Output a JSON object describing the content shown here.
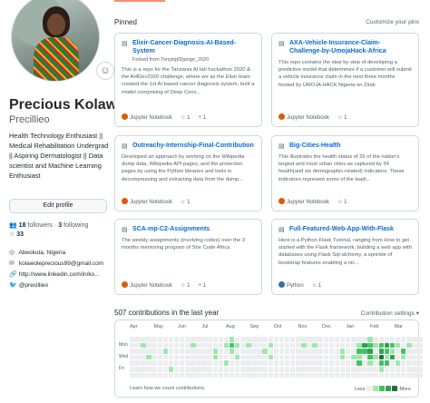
{
  "profile": {
    "name": "Precious Kolawole",
    "username": "Precillieo",
    "bio": "Health Technology Enthusiast || Medical Rehabilitation Undergrad || Aspiring Dermatologist || Data scientist and Machine Learning Enthusiast",
    "edit_label": "Edit profile",
    "followers": "18",
    "followers_label": "followers",
    "following": "3",
    "following_label": "following",
    "stars": "33",
    "location": "Abeokuta, Nigeria",
    "email": "kolawoleprecious99@gmail.com",
    "website": "http://www.linkedin.com/in/ko...",
    "twitter": "@precillieo"
  },
  "pinned": {
    "title": "Pinned",
    "customize_label": "Customize your pins",
    "repos": [
      {
        "name": "Elixir-Cancer-Diagnosis-AI-Based-System",
        "forked": "Forked from Tonytojt/Django_2020",
        "desc": "This is a repo for the Tanzania AI lab hackathon 2020 & the AI4Dev2020 challenge, where we as the Elixir team created the 1st AI based cancer diagnosis system, built a model comprising of Deep Conv...",
        "language": "Jupyter Notebook",
        "lang_color": "#DA5B0B",
        "stars": "1",
        "forks": "1"
      },
      {
        "name": "AXA-Vehicle-Insurance-Claim-Challenge-by-UmojaHack-Africa",
        "forked": "",
        "desc": "This repo contains the step by step of developing a predictive model that determines if a customer will submit a vehicle insurance claim in the next three months hosted by UMOJA HACK Nigeria on Zindi",
        "language": "Jupyter Notebook",
        "lang_color": "#DA5B0B",
        "stars": "1",
        "forks": ""
      },
      {
        "name": "Outreachy-Internship-Final-Contribution",
        "forked": "",
        "desc": "Developed an approach by working on the Wikipedia dump data, Wikipedia API pages, and the protection pages by using the Python libraries and tools in decompressing and extracting data from the dump...",
        "language": "Jupyter Notebook",
        "lang_color": "#DA5B0B",
        "stars": "1",
        "forks": ""
      },
      {
        "name": "Big-Cities-Health",
        "forked": "",
        "desc": "This illustrates the health status of 26 of the nation's largest and most urban cities as captured by 34 health(and six demographic-related) indicators. These indicators represent some of the leadi...",
        "language": "Jupyter Notebook",
        "lang_color": "#DA5B0B",
        "stars": "1",
        "forks": ""
      },
      {
        "name": "SCA-mp-C2-Assignments",
        "forked": "",
        "desc": "The weekly assignments (involving codes) over the 3 months mentoring program of She Code Africa",
        "language": "Jupyter Notebook",
        "lang_color": "#DA5B0B",
        "stars": "1",
        "forks": "1"
      },
      {
        "name": "Full-Featured-Web-App-With-Flask",
        "forked": "",
        "desc": "Here is a Python Flask Tutorial, ranging from How to get started with the Flask framework, building a web app with databases using Flask Sql-alchemy, a sprinkle of bootstrap features enabling a nic...",
        "language": "Python",
        "lang_color": "#3572A5",
        "stars": "1",
        "forks": ""
      }
    ]
  },
  "contributions": {
    "title": "507 contributions in the last year",
    "settings_label": "Contribution settings",
    "months": [
      "Apr",
      "May",
      "Jun",
      "Jul",
      "Aug",
      "Sep",
      "Oct",
      "Nov",
      "Dec",
      "Jan",
      "Feb",
      "Mar"
    ],
    "days": [
      "Mon",
      "Wed",
      "Fri"
    ],
    "learn_label": "Learn how we count contributions.",
    "legend_less": "Less",
    "legend_more": "More",
    "palette": [
      "#ebedf0",
      "#9be9a8",
      "#40c463",
      "#30a14e",
      "#216e39"
    ],
    "weeks": [
      [
        0,
        0,
        0,
        0,
        0,
        0,
        0
      ],
      [
        0,
        0,
        0,
        0,
        0,
        0,
        0
      ],
      [
        0,
        1,
        0,
        0,
        0,
        0,
        0
      ],
      [
        0,
        0,
        0,
        1,
        0,
        0,
        0
      ],
      [
        0,
        0,
        0,
        0,
        0,
        0,
        0
      ],
      [
        0,
        0,
        0,
        0,
        0,
        0,
        0
      ],
      [
        0,
        0,
        1,
        0,
        0,
        0,
        0
      ],
      [
        0,
        0,
        0,
        0,
        0,
        1,
        0
      ],
      [
        0,
        0,
        0,
        0,
        0,
        0,
        0
      ],
      [
        0,
        0,
        0,
        0,
        0,
        0,
        0
      ],
      [
        0,
        0,
        0,
        0,
        0,
        0,
        0
      ],
      [
        0,
        1,
        0,
        0,
        0,
        0,
        0
      ],
      [
        0,
        0,
        0,
        0,
        0,
        0,
        0
      ],
      [
        0,
        0,
        0,
        0,
        0,
        0,
        0
      ],
      [
        0,
        0,
        0,
        0,
        0,
        0,
        0
      ],
      [
        0,
        0,
        1,
        1,
        0,
        0,
        0
      ],
      [
        0,
        0,
        0,
        0,
        0,
        0,
        0
      ],
      [
        0,
        1,
        0,
        0,
        1,
        0,
        0
      ],
      [
        1,
        2,
        1,
        0,
        0,
        0,
        0
      ],
      [
        0,
        1,
        0,
        1,
        0,
        0,
        0
      ],
      [
        0,
        0,
        0,
        0,
        0,
        0,
        0
      ],
      [
        0,
        1,
        0,
        0,
        0,
        0,
        0
      ],
      [
        0,
        0,
        0,
        0,
        0,
        0,
        0
      ],
      [
        0,
        0,
        0,
        0,
        0,
        0,
        0
      ],
      [
        0,
        0,
        1,
        0,
        0,
        0,
        0
      ],
      [
        0,
        1,
        0,
        1,
        0,
        0,
        0
      ],
      [
        0,
        0,
        0,
        0,
        0,
        0,
        0
      ],
      [
        0,
        0,
        0,
        0,
        0,
        0,
        0
      ],
      [
        0,
        0,
        0,
        0,
        0,
        0,
        0
      ],
      [
        0,
        0,
        0,
        0,
        0,
        0,
        0
      ],
      [
        0,
        0,
        0,
        0,
        0,
        0,
        0
      ],
      [
        0,
        1,
        0,
        0,
        0,
        0,
        0
      ],
      [
        0,
        0,
        0,
        0,
        0,
        0,
        0
      ],
      [
        0,
        1,
        0,
        0,
        0,
        0,
        0
      ],
      [
        0,
        0,
        0,
        0,
        0,
        0,
        0
      ],
      [
        0,
        0,
        0,
        0,
        0,
        0,
        0
      ],
      [
        0,
        0,
        0,
        0,
        0,
        0,
        0
      ],
      [
        0,
        0,
        0,
        0,
        0,
        0,
        0
      ],
      [
        0,
        0,
        1,
        1,
        0,
        0,
        0
      ],
      [
        0,
        0,
        0,
        0,
        0,
        0,
        0
      ],
      [
        0,
        0,
        0,
        1,
        0,
        0,
        0
      ],
      [
        0,
        1,
        2,
        1,
        2,
        0,
        0
      ],
      [
        0,
        3,
        2,
        0,
        0,
        0,
        0
      ],
      [
        1,
        2,
        3,
        2,
        1,
        0,
        0
      ],
      [
        0,
        1,
        0,
        1,
        0,
        0,
        0
      ],
      [
        0,
        2,
        3,
        4,
        2,
        1,
        0
      ],
      [
        0,
        3,
        2,
        1,
        2,
        0,
        0
      ],
      [
        0,
        2,
        1,
        3,
        0,
        0,
        0
      ],
      [
        0,
        1,
        0,
        0,
        1,
        0,
        0
      ],
      [
        0,
        0,
        2,
        1,
        0,
        0,
        0
      ],
      [
        0,
        1,
        0,
        0,
        0,
        0,
        0
      ],
      [
        0,
        0,
        0,
        0,
        0,
        0,
        0
      ],
      [
        0,
        0,
        0,
        0,
        0,
        0,
        0
      ]
    ]
  }
}
